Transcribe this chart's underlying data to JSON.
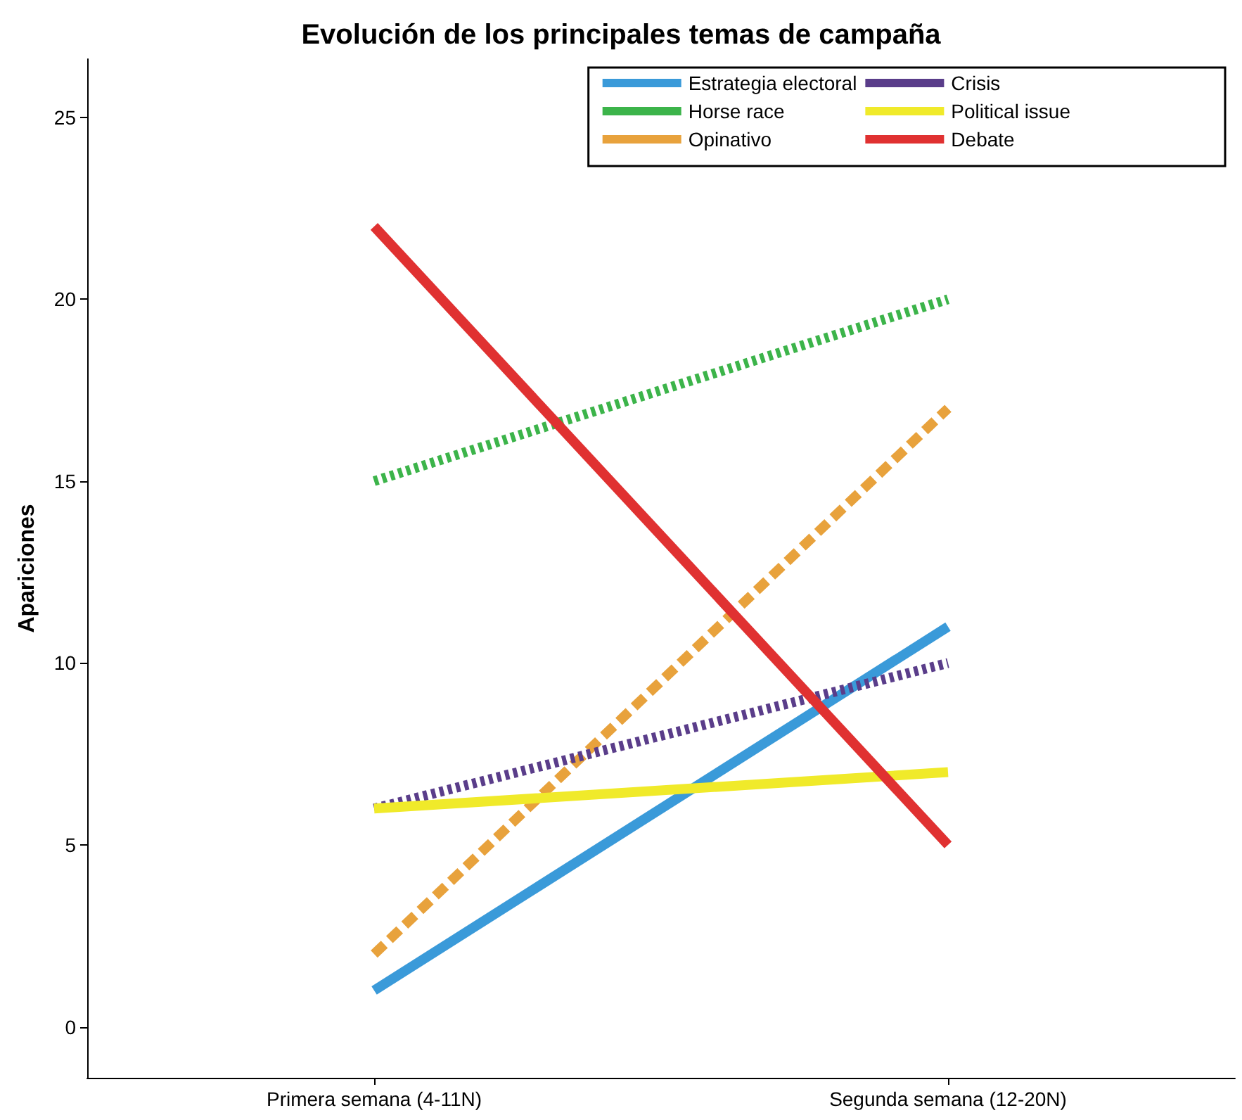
{
  "chart_data": {
    "type": "line",
    "title": "Evolución de los principales temas de campaña",
    "ylabel": "Apariciones",
    "categories": [
      "Primera semana (4-11N)",
      "Segunda semana (12-20N)"
    ],
    "ylim": [
      -1.4,
      26.6
    ],
    "yticks": [
      0,
      5,
      10,
      15,
      20,
      25
    ],
    "grid": false,
    "legend": "top right",
    "marker": "none",
    "series": [
      {
        "name": "Estrategia electoral",
        "color": "#3a9ad9",
        "values": [
          1,
          11
        ],
        "line_style": "solid"
      },
      {
        "name": "Horse race",
        "color": "#3cb44a",
        "values": [
          15,
          20
        ],
        "line_style": "dotted"
      },
      {
        "name": "Opinativo",
        "color": "#e8a23c",
        "values": [
          2,
          17
        ],
        "line_style": "dashed"
      },
      {
        "name": "Crisis",
        "color": "#5a3d8a",
        "values": [
          6,
          10
        ],
        "line_style": "dotted"
      },
      {
        "name": "Political issue",
        "color": "#f0ea2a",
        "values": [
          6,
          7
        ],
        "line_style": "solid"
      },
      {
        "name": "Debate",
        "color": "#e03131",
        "values": [
          22,
          5
        ],
        "line_style": "solid"
      }
    ]
  }
}
